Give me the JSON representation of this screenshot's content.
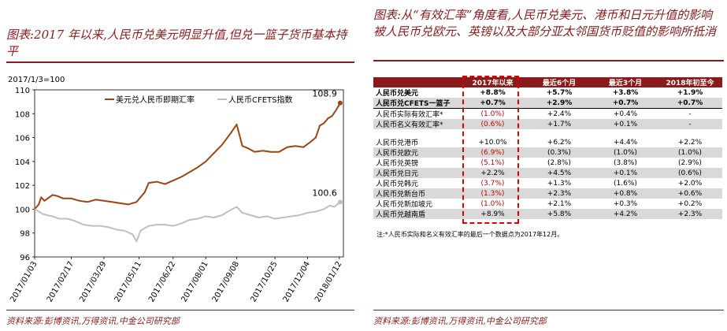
{
  "left_panel": {
    "title": "图表:2017 年以来,人民币兑美元明显升值,但兑一篮子货币基本持平",
    "source": "资料来源:彭博资讯,万得资讯,中金公司研究部"
  },
  "right_panel": {
    "title": "图表:从“有效汇率”角度看,人民币兑美元、港币和日元升值的影响被人民币兑欧元、英镑以及大部分亚太邻国货币贬值的影响所抵消",
    "source": "资料来源:彭博资讯,万得资讯,中金公司研究部",
    "note": "注:*人民币实际和名义有效汇率的最后一个数据点为2017年12月。"
  },
  "colors": {
    "accent": "#8b1a1a",
    "usd_series": "#a0430f",
    "cfets_series": "#bfbfbf",
    "negative": "#c00000",
    "highlight_box": "#e00000"
  },
  "chart_data": {
    "type": "line",
    "subtitle": "2017/1/3=100",
    "ylim": [
      96,
      110
    ],
    "yticks": [
      96,
      98,
      100,
      102,
      104,
      106,
      108,
      110
    ],
    "xlim": [
      0,
      379
    ],
    "xticks": [
      {
        "label": "2017/01/03",
        "x": 0
      },
      {
        "label": "2017/02/17",
        "x": 45
      },
      {
        "label": "2017/03/29",
        "x": 85
      },
      {
        "label": "2017/05/11",
        "x": 128
      },
      {
        "label": "2017/06/22",
        "x": 170
      },
      {
        "label": "2017/08/01",
        "x": 210
      },
      {
        "label": "2017/09/08",
        "x": 248
      },
      {
        "label": "2017/10/25",
        "x": 295
      },
      {
        "label": "2017/12/04",
        "x": 335
      },
      {
        "label": "2018/01/12",
        "x": 374
      }
    ],
    "legend_position": "top-right",
    "grid": false,
    "series": [
      {
        "name": "美元兑人民币即期汇率",
        "end_label": "108.9",
        "points": [
          [
            0,
            100
          ],
          [
            5,
            100.4
          ],
          [
            8,
            101
          ],
          [
            12,
            100.7
          ],
          [
            18,
            101
          ],
          [
            22,
            101.2
          ],
          [
            28,
            101.1
          ],
          [
            35,
            100.9
          ],
          [
            45,
            100.9
          ],
          [
            55,
            100.7
          ],
          [
            65,
            100.6
          ],
          [
            75,
            100.8
          ],
          [
            85,
            100.7
          ],
          [
            95,
            100.6
          ],
          [
            105,
            100.5
          ],
          [
            115,
            100.4
          ],
          [
            125,
            100.6
          ],
          [
            135,
            101.4
          ],
          [
            140,
            102.2
          ],
          [
            150,
            102.3
          ],
          [
            160,
            102.1
          ],
          [
            170,
            102.4
          ],
          [
            180,
            102.7
          ],
          [
            190,
            103.1
          ],
          [
            200,
            103.5
          ],
          [
            210,
            104
          ],
          [
            220,
            104.7
          ],
          [
            230,
            105.4
          ],
          [
            240,
            106.3
          ],
          [
            248,
            107.1
          ],
          [
            255,
            105.3
          ],
          [
            262,
            105.1
          ],
          [
            270,
            104.8
          ],
          [
            280,
            104.9
          ],
          [
            290,
            104.8
          ],
          [
            300,
            104.8
          ],
          [
            310,
            105.2
          ],
          [
            320,
            105.3
          ],
          [
            330,
            105.2
          ],
          [
            338,
            105.6
          ],
          [
            345,
            106
          ],
          [
            350,
            107
          ],
          [
            355,
            107.2
          ],
          [
            360,
            107.6
          ],
          [
            365,
            107.8
          ],
          [
            370,
            108.3
          ],
          [
            375,
            108.9
          ]
        ]
      },
      {
        "name": "人民币CFETS指数",
        "end_label": "100.6",
        "points": [
          [
            0,
            100
          ],
          [
            5,
            99.8
          ],
          [
            10,
            99.6
          ],
          [
            15,
            99.5
          ],
          [
            22,
            99.4
          ],
          [
            30,
            99.2
          ],
          [
            40,
            99.2
          ],
          [
            50,
            99
          ],
          [
            60,
            98.7
          ],
          [
            70,
            98.6
          ],
          [
            80,
            98.6
          ],
          [
            90,
            98.5
          ],
          [
            100,
            98.3
          ],
          [
            110,
            98.2
          ],
          [
            120,
            97.9
          ],
          [
            125,
            97.3
          ],
          [
            130,
            98.2
          ],
          [
            140,
            98.6
          ],
          [
            150,
            98.7
          ],
          [
            160,
            98.7
          ],
          [
            170,
            98.6
          ],
          [
            180,
            98.8
          ],
          [
            190,
            99.1
          ],
          [
            200,
            99.2
          ],
          [
            210,
            99.4
          ],
          [
            220,
            99.3
          ],
          [
            230,
            99.5
          ],
          [
            240,
            99.9
          ],
          [
            248,
            100.2
          ],
          [
            255,
            99.7
          ],
          [
            265,
            99.5
          ],
          [
            275,
            99.3
          ],
          [
            285,
            99.4
          ],
          [
            295,
            99.2
          ],
          [
            305,
            99.3
          ],
          [
            315,
            99.4
          ],
          [
            325,
            99.5
          ],
          [
            335,
            99.7
          ],
          [
            345,
            99.8
          ],
          [
            355,
            100
          ],
          [
            362,
            100.3
          ],
          [
            368,
            100.2
          ],
          [
            375,
            100.6
          ]
        ]
      }
    ]
  },
  "table": {
    "headers": [
      "",
      "2017年以来",
      "最近6个月",
      "最近3个月",
      "2018年初至今"
    ],
    "rows": [
      {
        "label": "人民币兑美元",
        "values": [
          "+8.8%",
          "+5.7%",
          "+3.8%",
          "+1.9%"
        ],
        "bold": true,
        "shade": false
      },
      {
        "label": "人民币兑CFETS一篮子",
        "values": [
          "+0.7%",
          "+2.9%",
          "+0.7%",
          "+0.7%"
        ],
        "bold": true,
        "shade": true,
        "thick": true
      },
      {
        "label": "人民币实际有效汇率*",
        "values": [
          "(1.0%)",
          "+2.4%",
          "+0.4%",
          "-"
        ],
        "bold": false,
        "shade": false
      },
      {
        "label": "人民币名义有效汇率*",
        "values": [
          "(0.6%)",
          "+1.7%",
          "+0.1%",
          "-"
        ],
        "bold": false,
        "shade": true
      },
      {
        "spacer": true
      },
      {
        "label": "人民币兑港币",
        "values": [
          "+10.0%",
          "+6.2%",
          "+4.4%",
          "+2.2%"
        ],
        "bold": false,
        "shade": false
      },
      {
        "label": "人民币兑欧元",
        "values": [
          "(6.9%)",
          "(0.3%)",
          "(1.0%)",
          "(1.0%)"
        ],
        "bold": false,
        "shade": true
      },
      {
        "label": "人民币兑英镑",
        "values": [
          "(5.1%)",
          "(2.8%)",
          "(3.8%)",
          "(2.9%)"
        ],
        "bold": false,
        "shade": false
      },
      {
        "label": "人民币兑日元",
        "values": [
          "+2.2%",
          "+4.5%",
          "+0.1%",
          "(0.6%)"
        ],
        "bold": false,
        "shade": true
      },
      {
        "label": "人民币兑韩元",
        "values": [
          "(3.7%)",
          "+1.3%",
          "(1.6%)",
          "+2.0%"
        ],
        "bold": false,
        "shade": false
      },
      {
        "label": "人民币兑新台币",
        "values": [
          "(1.3%)",
          "+2.3%",
          "+0.8%",
          "+0.6%"
        ],
        "bold": false,
        "shade": true
      },
      {
        "label": "人民币兑新加坡元",
        "values": [
          "(1.0%)",
          "+2.1%",
          "+0.3%",
          "+0.2%"
        ],
        "bold": false,
        "shade": false
      },
      {
        "label": "人民币兑越南盾",
        "values": [
          "+8.9%",
          "+5.8%",
          "+4.2%",
          "+2.3%"
        ],
        "bold": false,
        "shade": true
      }
    ]
  }
}
